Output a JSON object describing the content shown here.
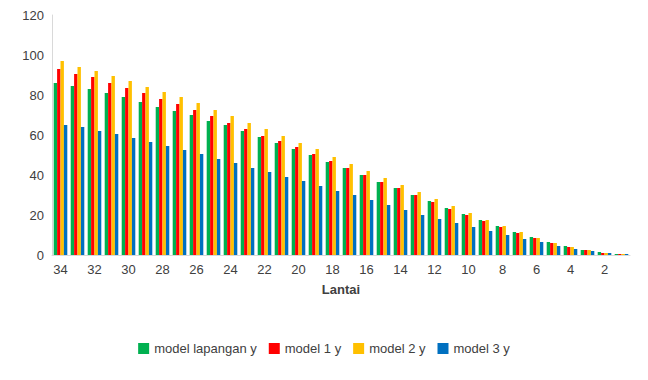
{
  "chart_data": {
    "type": "bar",
    "x_label": "Lantai",
    "categories": [
      "34",
      null,
      "32",
      null,
      "30",
      null,
      "28",
      null,
      "26",
      null,
      "24",
      null,
      "22",
      null,
      "20",
      null,
      "18",
      null,
      "16",
      null,
      "14",
      null,
      "12",
      null,
      "10",
      null,
      "8",
      null,
      "6",
      null,
      "4",
      null,
      "2",
      null
    ],
    "series": [
      {
        "name": "model lapangan y",
        "color": "#00b050",
        "values": [
          86,
          84.5,
          83,
          81,
          79,
          76.5,
          74,
          72,
          70,
          67,
          65,
          62,
          59,
          56,
          53,
          50,
          46.5,
          43.5,
          40,
          36.5,
          33.5,
          30,
          27,
          23.5,
          20.5,
          17.5,
          14.5,
          11.5,
          9,
          6.5,
          4.5,
          2.5,
          1.5,
          0.5
        ]
      },
      {
        "name": "model 1 y",
        "color": "#ff0000",
        "values": [
          93,
          90.5,
          89,
          86,
          83.5,
          81,
          78,
          75.5,
          72.5,
          69.5,
          66,
          63,
          59.5,
          57,
          54,
          50.5,
          47,
          43.5,
          40,
          36.5,
          33.5,
          30,
          26.5,
          23,
          20,
          17,
          14,
          11,
          8.5,
          6,
          4,
          2.5,
          1,
          0.5
        ]
      },
      {
        "name": "model 2 y",
        "color": "#ffc000",
        "values": [
          97,
          94,
          92,
          89.5,
          87,
          84,
          81.5,
          79,
          76,
          72.5,
          69.5,
          66,
          63,
          59.5,
          56,
          53,
          49,
          45.5,
          42,
          38.5,
          35,
          31.5,
          28,
          24.5,
          21,
          17.5,
          14.5,
          11.5,
          8.5,
          6,
          4,
          2.5,
          1,
          0.5
        ]
      },
      {
        "name": "model 3 y",
        "color": "#0070c0",
        "values": [
          65,
          64,
          62,
          60.5,
          58.5,
          56.5,
          54.5,
          52.5,
          50.5,
          48,
          46,
          43.5,
          41.5,
          39,
          37,
          34.5,
          32,
          30,
          27.5,
          25,
          22.5,
          20,
          18,
          16,
          14,
          12,
          10,
          8,
          6.5,
          4.5,
          3,
          2,
          1,
          0.5
        ]
      }
    ],
    "ylim": [
      0,
      120
    ],
    "yticks": [
      0,
      20,
      40,
      60,
      80,
      100,
      120
    ],
    "grid": false,
    "legend": "bottom"
  }
}
